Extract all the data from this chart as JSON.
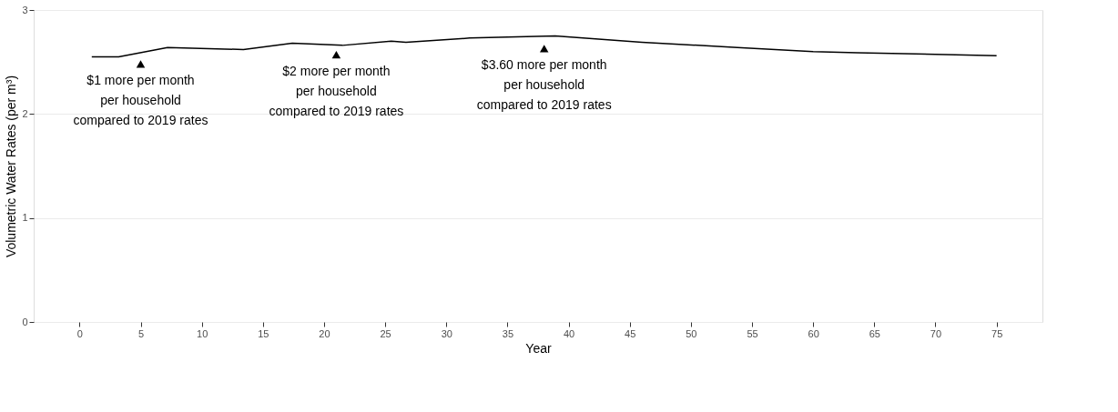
{
  "chart_data": {
    "type": "line",
    "xlabel": "Year",
    "ylabel": "Volumetric Water Rates (per m³)",
    "xlim": [
      -3.75,
      78.75
    ],
    "ylim": [
      0,
      3
    ],
    "xticks": [
      0,
      5,
      10,
      15,
      20,
      25,
      30,
      35,
      40,
      45,
      50,
      55,
      60,
      65,
      70,
      75
    ],
    "yticks": [
      0,
      1,
      2,
      3
    ],
    "grid": "y",
    "series": [
      {
        "color": "#000000",
        "marker": "none",
        "x": [
          1,
          3.2,
          7.2,
          13.4,
          17.4,
          21.5,
          25.5,
          26.7,
          31.9,
          38.9,
          46,
          53.8,
          60,
          63.6,
          75
        ],
        "values": [
          2.55,
          2.55,
          2.64,
          2.62,
          2.68,
          2.66,
          2.7,
          2.69,
          2.73,
          2.75,
          2.69,
          2.64,
          2.6,
          2.59,
          2.56
        ]
      },
      {
        "color": "#000000",
        "type": "scatter",
        "marker": "triangle",
        "x": [
          5,
          21,
          38
        ],
        "values": [
          2.48,
          2.57,
          2.63
        ]
      }
    ],
    "annotations": [
      {
        "text": "$1 more per month\nper household\ncompared to 2019 rates",
        "x": 5,
        "y": 2.48
      },
      {
        "text": "$2 more per month\nper household\ncompared to 2019 rates",
        "x": 21,
        "y": 2.57
      },
      {
        "text": "$3.60 more per month\nper household\ncompared to 2019 rates",
        "x": 38,
        "y": 2.63
      }
    ]
  }
}
